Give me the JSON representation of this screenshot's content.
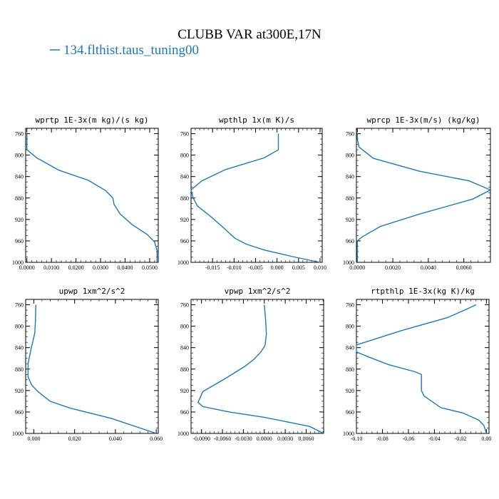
{
  "title": "CLUBB VAR at300E,17N",
  "legend": {
    "label": "134.flthist.taus_tuning00",
    "color": "#1f77b4"
  },
  "chart_data": [
    {
      "type": "line",
      "title": "wprtp  1E-3x(m kg)/(s kg)",
      "xlim": [
        -0.0005,
        0.0535
      ],
      "ylim": [
        1000,
        750
      ],
      "xticks": [
        0.0,
        0.01,
        0.02,
        0.03,
        0.04,
        0.05
      ],
      "xtick_labels": [
        "0.0000",
        "0.0100",
        "0.0200",
        "0.0300",
        "0.0400",
        "0.0500"
      ],
      "yticks": [
        760,
        800,
        840,
        880,
        920,
        960,
        1000
      ],
      "series": [
        {
          "color": "#1f77b4",
          "x": [
            0.0,
            0.0,
            0.0,
            0.0,
            0.004,
            0.013,
            0.025,
            0.032,
            0.035,
            0.0355,
            0.038,
            0.043,
            0.049,
            0.052,
            0.053,
            0.053
          ],
          "y": [
            760,
            770,
            780,
            790,
            805,
            828,
            847,
            866,
            880,
            892,
            910,
            930,
            948,
            962,
            978,
            1000
          ]
        }
      ]
    },
    {
      "type": "line",
      "title": "wpthlp  1x(m K)/s",
      "xlim": [
        -0.02,
        0.0105
      ],
      "ylim": [
        1000,
        750
      ],
      "xticks": [
        -0.015,
        -0.01,
        -0.005,
        0.0,
        0.005,
        0.01
      ],
      "xtick_labels": [
        "-0.015",
        "-0.010",
        "-0.005",
        "0.000",
        "0.005",
        "0.010"
      ],
      "yticks": [
        760,
        800,
        840,
        880,
        920,
        960,
        1000
      ],
      "series": [
        {
          "color": "#1f77b4",
          "x": [
            0.0003,
            0.0003,
            0.0003,
            -0.003,
            -0.012,
            -0.0175,
            -0.02,
            -0.0195,
            -0.0185,
            -0.0155,
            -0.0128,
            -0.0098,
            -0.0072,
            -0.003,
            0.004,
            0.01
          ],
          "y": [
            760,
            775,
            790,
            805,
            827,
            848,
            865,
            880,
            895,
            914,
            933,
            955,
            966,
            977,
            990,
            1000
          ]
        }
      ]
    },
    {
      "type": "line",
      "title": "wprcp  1E-3x(m/s) (kg/kg)",
      "xlim": [
        -5e-05,
        0.0075
      ],
      "ylim": [
        1000,
        750
      ],
      "xticks": [
        0.0,
        0.002,
        0.004,
        0.006
      ],
      "xtick_labels": [
        "0.0000",
        "0.0020",
        "0.0040",
        "0.0060"
      ],
      "yticks": [
        760,
        800,
        840,
        880,
        920,
        960,
        1000
      ],
      "series": [
        {
          "color": "#1f77b4",
          "x": [
            0.0,
            0.0,
            0.0001,
            0.0009,
            0.0035,
            0.0063,
            0.0075,
            0.0065,
            0.0035,
            0.0013,
            0.0003,
            0.0,
            0.0,
            0.0
          ],
          "y": [
            760,
            770,
            785,
            806,
            830,
            848,
            865,
            882,
            910,
            933,
            952,
            960,
            975,
            1000
          ]
        }
      ]
    },
    {
      "type": "line",
      "title": "upwp  1xm^2/s^2",
      "xlim": [
        -0.004,
        0.061
      ],
      "ylim": [
        1000,
        750
      ],
      "xticks": [
        0.0,
        0.02,
        0.04,
        0.06
      ],
      "xtick_labels": [
        "0.000",
        "0.020",
        "0.040",
        "0.060"
      ],
      "yticks": [
        760,
        800,
        840,
        880,
        920,
        960,
        1000
      ],
      "series": [
        {
          "color": "#1f77b4",
          "x": [
            0.001,
            0.0008,
            0.0005,
            -0.0015,
            -0.0028,
            -0.0028,
            -0.001,
            0.002,
            0.008,
            0.018,
            0.038,
            0.06
          ],
          "y": [
            760,
            790,
            812,
            845,
            870,
            895,
            910,
            922,
            940,
            953,
            972,
            1000
          ]
        }
      ]
    },
    {
      "type": "line",
      "title": "vpwp  1xm^2/s^2",
      "xlim": [
        -0.0105,
        0.0085
      ],
      "ylim": [
        1000,
        750
      ],
      "xticks": [
        -0.009,
        -0.006,
        -0.003,
        0.0,
        0.003,
        0.006
      ],
      "xtick_labels": [
        "-0.0090",
        "-0.0060",
        "-0.0030",
        "0.0000",
        "0.0030",
        "0.0060"
      ],
      "yticks": [
        760,
        800,
        840,
        880,
        920,
        960,
        1000
      ],
      "series": [
        {
          "color": "#1f77b4",
          "x": [
            0.0,
            0.0002,
            0.0003,
            0.0001,
            -0.0005,
            -0.0015,
            -0.0028,
            -0.0055,
            -0.0088,
            -0.0095,
            -0.0088,
            -0.005,
            0.0,
            0.0065,
            0.0085
          ],
          "y": [
            760,
            790,
            815,
            836,
            848,
            862,
            875,
            897,
            922,
            942,
            950,
            960,
            970,
            987,
            1000
          ]
        }
      ]
    },
    {
      "type": "line",
      "title": "rtpthlp  1E-3x(kg K)/kg",
      "xlim": [
        -0.1,
        0.002
      ],
      "ylim": [
        1000,
        750
      ],
      "xticks": [
        -0.1,
        -0.08,
        -0.06,
        -0.04,
        -0.02,
        0.0
      ],
      "xtick_labels": [
        "-0.10",
        "-0.08",
        "-0.06",
        "-0.04",
        "-0.02",
        "0.00"
      ],
      "yticks": [
        760,
        800,
        840,
        880,
        920,
        960,
        1000
      ],
      "series": [
        {
          "color": "#1f77b4",
          "x": [
            -0.008,
            -0.015,
            -0.03,
            -0.065,
            -0.1,
            -0.1,
            -0.09,
            -0.075,
            -0.055,
            -0.05,
            -0.05,
            -0.048,
            -0.035,
            -0.018,
            -0.006,
            -0.002,
            0.0
          ],
          "y": [
            760,
            768,
            784,
            808,
            835,
            848,
            858,
            872,
            885,
            890,
            920,
            930,
            952,
            962,
            975,
            985,
            1000
          ]
        }
      ]
    }
  ]
}
